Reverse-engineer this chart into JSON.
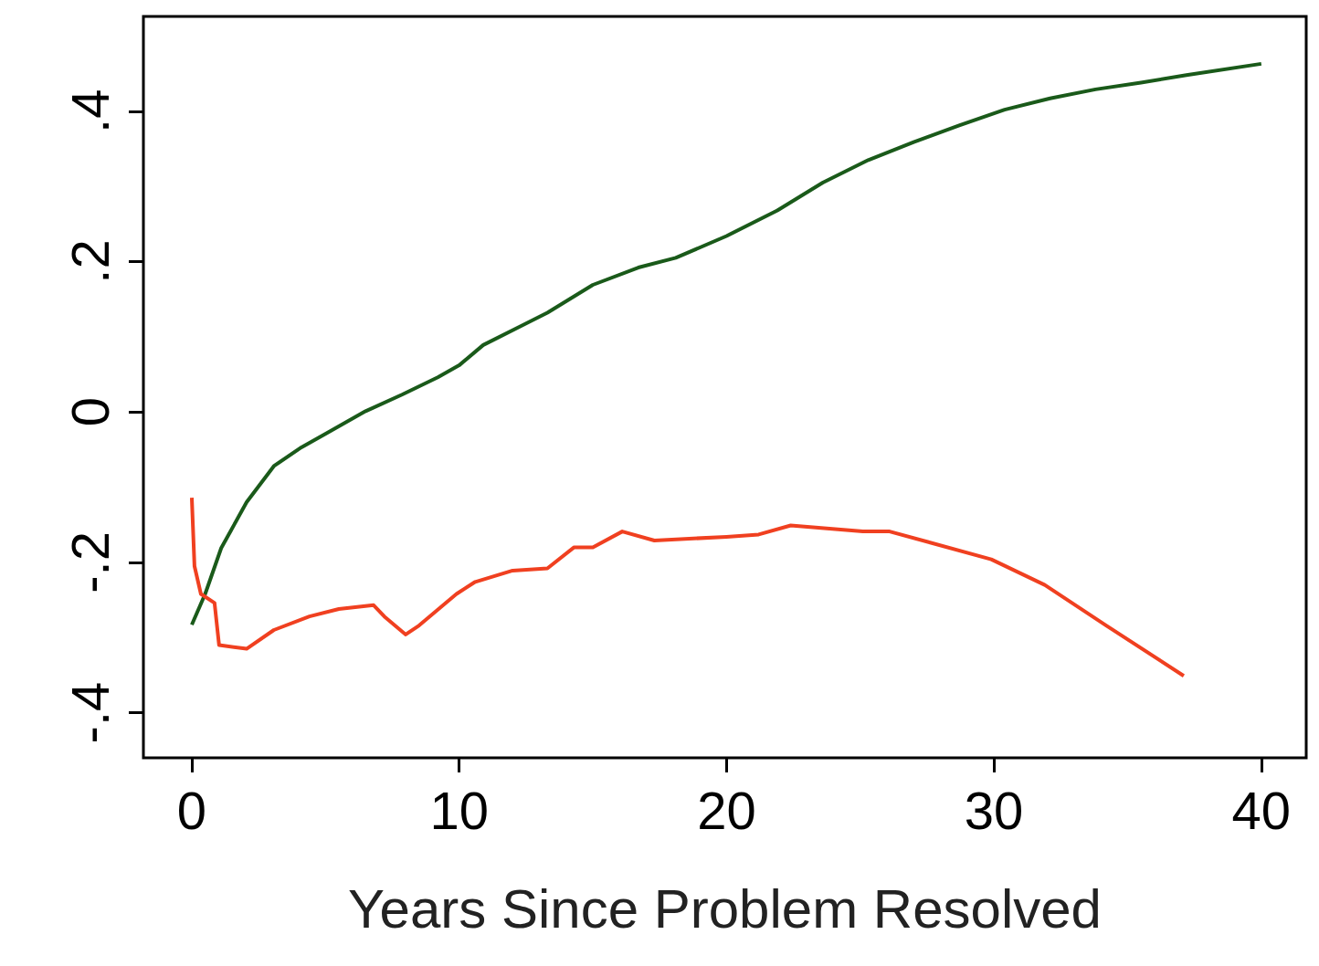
{
  "chart_data": {
    "type": "line",
    "xlabel": "Years Since Problem Resolved",
    "xlim": [
      -1.81,
      41.68
    ],
    "ylim": [
      -0.46,
      0.526
    ],
    "xticks": [
      0,
      10,
      20,
      30,
      40
    ],
    "yticks": [
      {
        "value": -0.4,
        "label": "-.4"
      },
      {
        "value": -0.2,
        "label": "-.2"
      },
      {
        "value": 0,
        "label": "0"
      },
      {
        "value": 0.2,
        "label": ".2"
      },
      {
        "value": 0.4,
        "label": ".4"
      }
    ],
    "series": [
      {
        "color": "#1a5a1a",
        "x": [
          0,
          0.5,
          1.1,
          2.05,
          3.07,
          4.1,
          5.1,
          6.5,
          7.86,
          9.2,
          10,
          10.9,
          12.3,
          13.3,
          15,
          16.7,
          18.1,
          20,
          21.9,
          23.6,
          25.3,
          27,
          28.7,
          30.4,
          32.1,
          33.8,
          35.5,
          37.2,
          40
        ],
        "values": [
          -0.283,
          -0.242,
          -0.181,
          -0.12,
          -0.072,
          -0.047,
          -0.027,
          0.001,
          0.023,
          0.046,
          0.062,
          0.089,
          0.114,
          0.132,
          0.169,
          0.192,
          0.205,
          0.234,
          0.268,
          0.305,
          0.335,
          0.359,
          0.381,
          0.402,
          0.417,
          0.429,
          0.438,
          0.448,
          0.463
        ]
      },
      {
        "color": "#f04020",
        "x": [
          0,
          0.1,
          0.34,
          0.85,
          1.02,
          2.05,
          3.07,
          4.4,
          5.5,
          6.8,
          7.2,
          8,
          8.5,
          9.2,
          9.9,
          10.6,
          12,
          13.3,
          14.3,
          15,
          16.1,
          17.3,
          20,
          21.2,
          22.4,
          25.1,
          26.1,
          29.9,
          31.9,
          34.2,
          37.1
        ],
        "values": [
          -0.114,
          -0.205,
          -0.242,
          -0.254,
          -0.31,
          -0.315,
          -0.29,
          -0.272,
          -0.262,
          -0.257,
          -0.272,
          -0.296,
          -0.284,
          -0.263,
          -0.242,
          -0.226,
          -0.211,
          -0.208,
          -0.18,
          -0.18,
          -0.159,
          -0.171,
          -0.166,
          -0.163,
          -0.151,
          -0.159,
          -0.159,
          -0.196,
          -0.23,
          -0.284,
          -0.351
        ]
      }
    ]
  }
}
